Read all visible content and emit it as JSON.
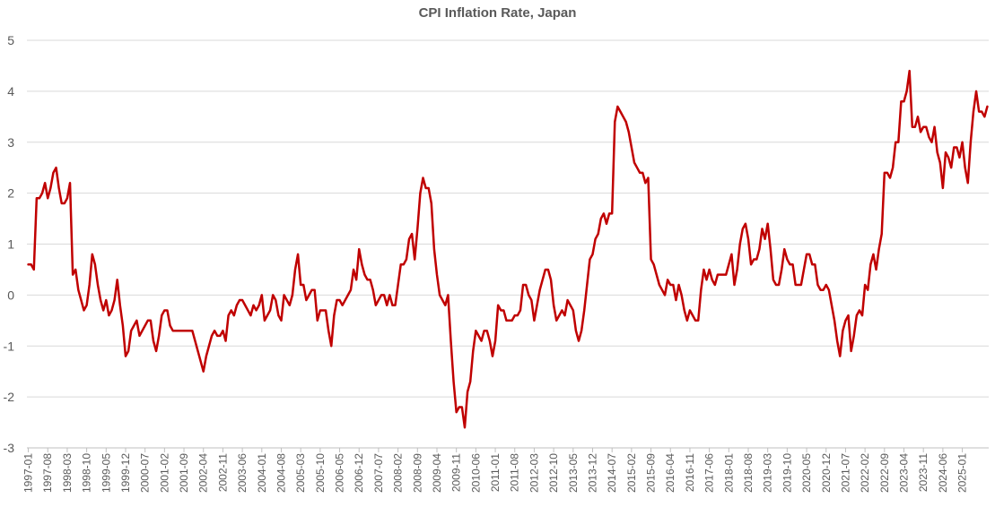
{
  "chart_data": {
    "type": "line",
    "title": "CPI Inflation Rate, Japan",
    "xlabel": "",
    "ylabel": "",
    "ylim": [
      -3,
      5
    ],
    "yticks": [
      5,
      4,
      3,
      2,
      1,
      0,
      -1,
      -2,
      -3
    ],
    "grid": true,
    "legend": "none",
    "colors": {
      "line": "#C00000",
      "grid": "#D9D9D9",
      "text": "#595959"
    },
    "x_tick_labels": [
      "1997-01",
      "1997-08",
      "1998-03",
      "1998-10",
      "1999-05",
      "1999-12",
      "2000-07",
      "2001-02",
      "2001-09",
      "2002-04",
      "2002-11",
      "2003-06",
      "2004-01",
      "2004-08",
      "2005-03",
      "2005-10",
      "2006-05",
      "2006-12",
      "2007-07",
      "2008-02",
      "2008-09",
      "2009-04",
      "2009-11",
      "2010-06",
      "2011-01",
      "2011-08",
      "2012-03",
      "2012-10",
      "2013-05",
      "2013-12",
      "2014-07",
      "2015-02",
      "2015-09",
      "2016-04",
      "2016-11",
      "2017-06",
      "2018-01",
      "2018-08",
      "2019-03",
      "2019-10",
      "2020-05",
      "2020-12",
      "2021-07",
      "2022-02",
      "2022-09",
      "2023-04",
      "2023-11",
      "2024-06",
      "2025-01"
    ],
    "series": [
      {
        "start": "1997-01",
        "frequency": "monthly",
        "values": [
          0.6,
          0.6,
          0.5,
          1.9,
          1.9,
          2.0,
          2.2,
          1.9,
          2.1,
          2.4,
          2.5,
          2.1,
          1.8,
          1.8,
          1.9,
          2.2,
          0.4,
          0.5,
          0.1,
          -0.1,
          -0.3,
          -0.2,
          0.2,
          0.8,
          0.6,
          0.2,
          -0.1,
          -0.3,
          -0.1,
          -0.4,
          -0.3,
          -0.1,
          0.3,
          -0.2,
          -0.6,
          -1.2,
          -1.1,
          -0.7,
          -0.6,
          -0.5,
          -0.8,
          -0.7,
          -0.6,
          -0.5,
          -0.5,
          -0.9,
          -1.1,
          -0.8,
          -0.4,
          -0.3,
          -0.3,
          -0.6,
          -0.7,
          -0.7,
          -0.7,
          -0.7,
          -0.7,
          -0.7,
          -0.7,
          -0.7,
          -0.9,
          -1.1,
          -1.3,
          -1.5,
          -1.2,
          -1.0,
          -0.8,
          -0.7,
          -0.8,
          -0.8,
          -0.7,
          -0.9,
          -0.4,
          -0.3,
          -0.4,
          -0.2,
          -0.1,
          -0.1,
          -0.2,
          -0.3,
          -0.4,
          -0.2,
          -0.3,
          -0.2,
          0.0,
          -0.5,
          -0.4,
          -0.3,
          0.0,
          -0.1,
          -0.4,
          -0.5,
          0.0,
          -0.1,
          -0.2,
          0.0,
          0.5,
          0.8,
          0.2,
          0.2,
          -0.1,
          0.0,
          0.1,
          0.1,
          -0.5,
          -0.3,
          -0.3,
          -0.3,
          -0.7,
          -1.0,
          -0.4,
          -0.1,
          -0.1,
          -0.2,
          -0.1,
          0.0,
          0.1,
          0.5,
          0.3,
          0.9,
          0.6,
          0.4,
          0.3,
          0.3,
          0.1,
          -0.2,
          -0.1,
          0.0,
          0.0,
          -0.2,
          0.0,
          -0.2,
          -0.2,
          0.2,
          0.6,
          0.6,
          0.7,
          1.1,
          1.2,
          0.7,
          1.3,
          2.0,
          2.3,
          2.1,
          2.1,
          1.8,
          0.9,
          0.4,
          0.0,
          -0.1,
          -0.2,
          0.0,
          -0.9,
          -1.7,
          -2.3,
          -2.2,
          -2.2,
          -2.6,
          -1.9,
          -1.7,
          -1.1,
          -0.7,
          -0.8,
          -0.9,
          -0.7,
          -0.7,
          -0.9,
          -1.2,
          -0.9,
          -0.2,
          -0.3,
          -0.3,
          -0.5,
          -0.5,
          -0.5,
          -0.4,
          -0.4,
          -0.3,
          0.2,
          0.2,
          0.0,
          -0.1,
          -0.5,
          -0.2,
          0.1,
          0.3,
          0.5,
          0.5,
          0.3,
          -0.2,
          -0.5,
          -0.4,
          -0.3,
          -0.4,
          -0.1,
          -0.2,
          -0.3,
          -0.7,
          -0.9,
          -0.7,
          -0.3,
          0.2,
          0.7,
          0.8,
          1.1,
          1.2,
          1.5,
          1.6,
          1.4,
          1.6,
          1.6,
          3.4,
          3.7,
          3.6,
          3.5,
          3.4,
          3.2,
          2.9,
          2.6,
          2.5,
          2.4,
          2.4,
          2.2,
          2.3,
          0.7,
          0.6,
          0.4,
          0.2,
          0.1,
          0.0,
          0.3,
          0.2,
          0.2,
          -0.1,
          0.2,
          0.0,
          -0.3,
          -0.5,
          -0.3,
          -0.4,
          -0.5,
          -0.5,
          0.1,
          0.5,
          0.3,
          0.5,
          0.3,
          0.2,
          0.4,
          0.4,
          0.4,
          0.4,
          0.6,
          0.8,
          0.2,
          0.5,
          1.0,
          1.3,
          1.4,
          1.1,
          0.6,
          0.7,
          0.7,
          0.9,
          1.3,
          1.1,
          1.4,
          0.9,
          0.3,
          0.2,
          0.2,
          0.5,
          0.9,
          0.7,
          0.6,
          0.6,
          0.2,
          0.2,
          0.2,
          0.5,
          0.8,
          0.8,
          0.6,
          0.6,
          0.2,
          0.1,
          0.1,
          0.2,
          0.1,
          -0.2,
          -0.5,
          -0.9,
          -1.2,
          -0.7,
          -0.5,
          -0.4,
          -1.1,
          -0.8,
          -0.4,
          -0.3,
          -0.4,
          0.2,
          0.1,
          0.6,
          0.8,
          0.5,
          0.9,
          1.2,
          2.4,
          2.4,
          2.3,
          2.5,
          3.0,
          3.0,
          3.8,
          3.8,
          4.0,
          4.4,
          3.3,
          3.3,
          3.5,
          3.2,
          3.3,
          3.3,
          3.1,
          3.0,
          3.3,
          2.8,
          2.6,
          2.1,
          2.8,
          2.7,
          2.5,
          2.9,
          2.9,
          2.7,
          3.0,
          2.5,
          2.2,
          3.0,
          3.6,
          4.0,
          3.6,
          3.6,
          3.5,
          3.7
        ]
      }
    ]
  }
}
